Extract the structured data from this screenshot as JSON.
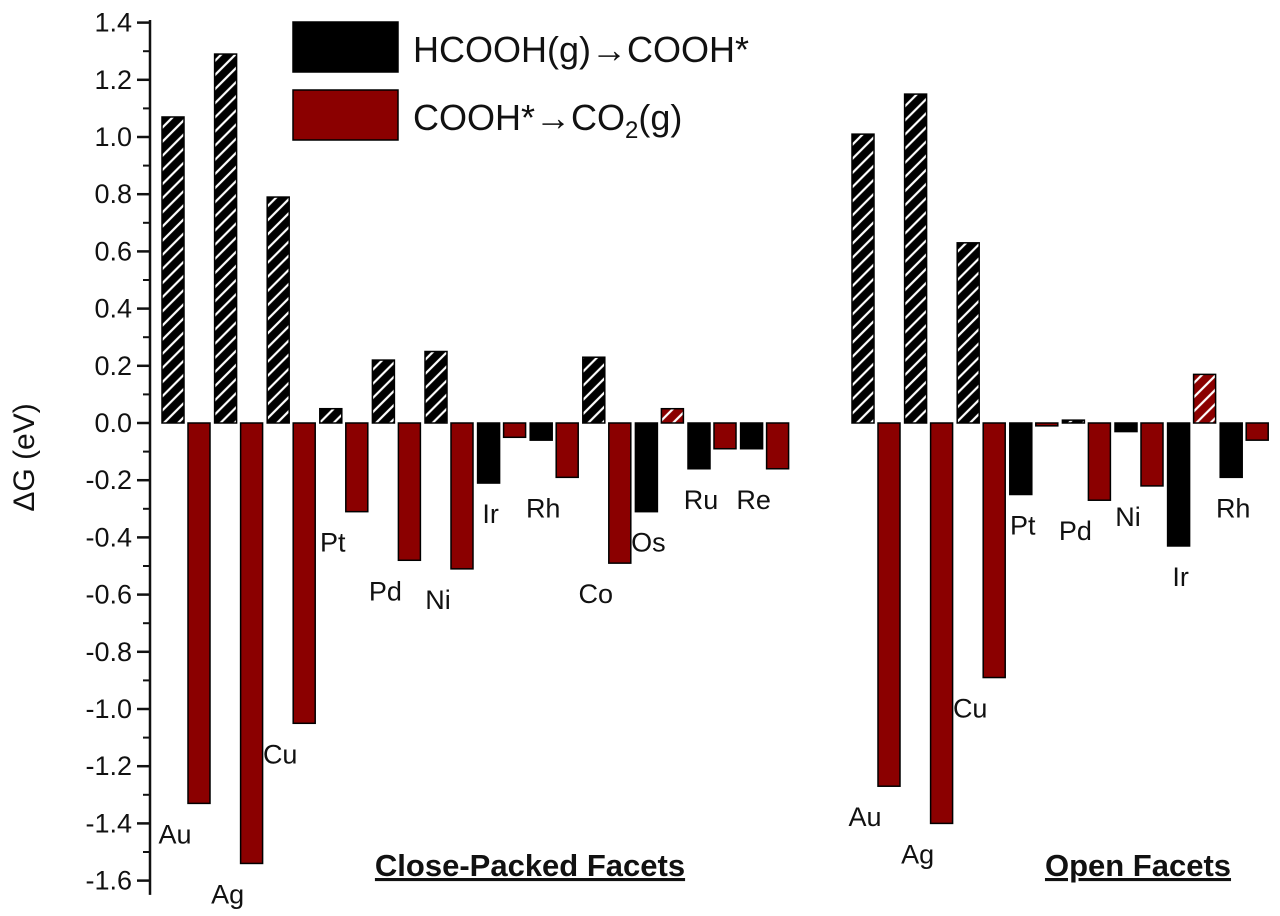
{
  "chart_data": {
    "type": "bar",
    "ylabel": "ΔG (eV)",
    "ylim": [
      -1.65,
      1.42
    ],
    "yticks": [
      "1.4",
      "1.2",
      "1.0",
      "0.8",
      "0.6",
      "0.4",
      "0.2",
      "0.0",
      "-0.2",
      "-0.4",
      "-0.6",
      "-0.8",
      "-1.0",
      "-1.2",
      "-1.4",
      "-1.6"
    ],
    "legend": [
      {
        "label_parts": [
          "HCOOH(g)→COOH*"
        ],
        "color": "#000000"
      },
      {
        "label_parts": [
          "COOH*→CO",
          "2",
          "(g)"
        ],
        "color": "#8b0000"
      }
    ],
    "groups": [
      {
        "title": "Close-Packed Facets",
        "metals": [
          {
            "name": "Au",
            "hcooh_to_cooh": 1.07,
            "cooh_to_co2": -1.33
          },
          {
            "name": "Ag",
            "hcooh_to_cooh": 1.29,
            "cooh_to_co2": -1.54
          },
          {
            "name": "Cu",
            "hcooh_to_cooh": 0.79,
            "cooh_to_co2": -1.05
          },
          {
            "name": "Pt",
            "hcooh_to_cooh": 0.05,
            "cooh_to_co2": -0.31
          },
          {
            "name": "Pd",
            "hcooh_to_cooh": 0.22,
            "cooh_to_co2": -0.48
          },
          {
            "name": "Ni",
            "hcooh_to_cooh": 0.25,
            "cooh_to_co2": -0.51
          },
          {
            "name": "Ir",
            "hcooh_to_cooh": -0.21,
            "cooh_to_co2": -0.05
          },
          {
            "name": "Rh",
            "hcooh_to_cooh": -0.06,
            "cooh_to_co2": -0.19
          },
          {
            "name": "Co",
            "hcooh_to_cooh": 0.23,
            "cooh_to_co2": -0.49
          },
          {
            "name": "Os",
            "hcooh_to_cooh": -0.31,
            "cooh_to_co2": 0.05
          },
          {
            "name": "Ru",
            "hcooh_to_cooh": -0.16,
            "cooh_to_co2": -0.09
          },
          {
            "name": "Re",
            "hcooh_to_cooh": -0.09,
            "cooh_to_co2": -0.16
          }
        ]
      },
      {
        "title": "Open Facets",
        "metals": [
          {
            "name": "Au",
            "hcooh_to_cooh": 1.01,
            "cooh_to_co2": -1.27
          },
          {
            "name": "Ag",
            "hcooh_to_cooh": 1.15,
            "cooh_to_co2": -1.4
          },
          {
            "name": "Cu",
            "hcooh_to_cooh": 0.63,
            "cooh_to_co2": -0.89
          },
          {
            "name": "Pt",
            "hcooh_to_cooh": -0.25,
            "cooh_to_co2": -0.01
          },
          {
            "name": "Pd",
            "hcooh_to_cooh": 0.01,
            "cooh_to_co2": -0.27
          },
          {
            "name": "Ni",
            "hcooh_to_cooh": -0.03,
            "cooh_to_co2": -0.22
          },
          {
            "name": "Ir",
            "hcooh_to_cooh": -0.43,
            "cooh_to_co2": 0.17
          },
          {
            "name": "Rh",
            "hcooh_to_cooh": -0.19,
            "cooh_to_co2": -0.06
          }
        ]
      }
    ]
  }
}
